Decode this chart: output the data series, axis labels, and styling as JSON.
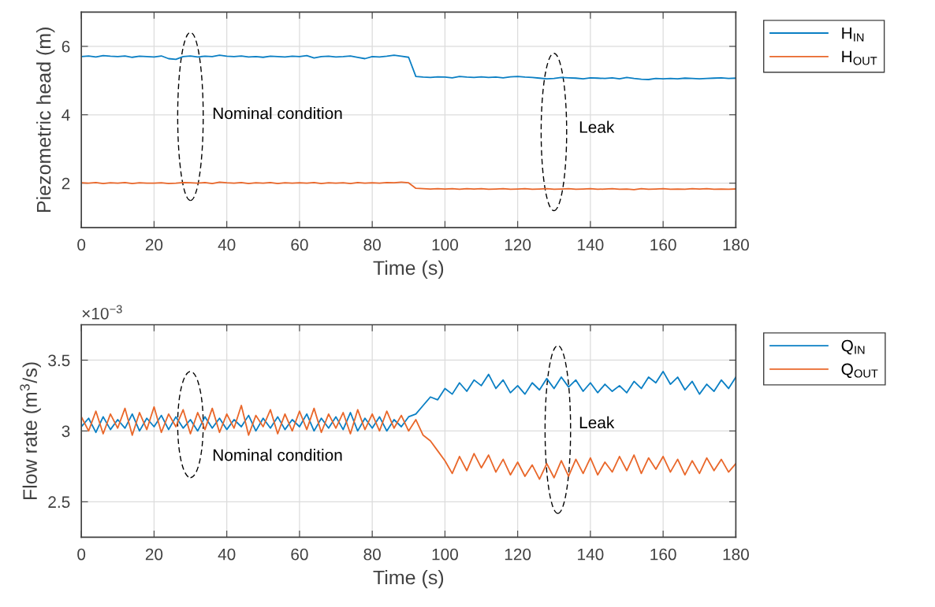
{
  "chart_data": [
    {
      "type": "line",
      "xlabel": "Time (s)",
      "ylabel": "Piezometric head (m)",
      "x": [
        0,
        2,
        4,
        6,
        8,
        10,
        12,
        14,
        16,
        18,
        20,
        22,
        24,
        26,
        28,
        30,
        32,
        34,
        36,
        38,
        40,
        42,
        44,
        46,
        48,
        50,
        52,
        54,
        56,
        58,
        60,
        62,
        64,
        66,
        68,
        70,
        72,
        74,
        76,
        78,
        80,
        82,
        84,
        86,
        88,
        90,
        92,
        94,
        96,
        98,
        100,
        102,
        104,
        106,
        108,
        110,
        112,
        114,
        116,
        118,
        120,
        122,
        124,
        126,
        128,
        130,
        132,
        134,
        136,
        138,
        140,
        142,
        144,
        146,
        148,
        150,
        152,
        154,
        156,
        158,
        160,
        162,
        164,
        166,
        168,
        170,
        172,
        174,
        176,
        178,
        180
      ],
      "series": [
        {
          "name": "H$_{IN}$",
          "color": "#0a7fc4",
          "values": [
            5.7,
            5.72,
            5.69,
            5.73,
            5.71,
            5.7,
            5.72,
            5.68,
            5.71,
            5.7,
            5.69,
            5.72,
            5.64,
            5.62,
            5.7,
            5.72,
            5.69,
            5.71,
            5.7,
            5.74,
            5.71,
            5.7,
            5.72,
            5.69,
            5.7,
            5.68,
            5.71,
            5.7,
            5.69,
            5.71,
            5.7,
            5.73,
            5.66,
            5.7,
            5.71,
            5.69,
            5.7,
            5.72,
            5.68,
            5.64,
            5.7,
            5.69,
            5.71,
            5.74,
            5.71,
            5.68,
            5.12,
            5.1,
            5.09,
            5.11,
            5.1,
            5.08,
            5.12,
            5.1,
            5.09,
            5.11,
            5.09,
            5.1,
            5.08,
            5.11,
            5.12,
            5.1,
            5.09,
            5.07,
            5.05,
            5.06,
            5.09,
            5.08,
            5.07,
            5.05,
            5.08,
            5.07,
            5.06,
            5.08,
            5.05,
            5.09,
            5.06,
            5.04,
            5.03,
            5.06,
            5.05,
            5.06,
            5.05,
            5.07,
            5.06,
            5.05,
            5.06,
            5.07,
            5.08,
            5.06,
            5.07
          ]
        },
        {
          "name": "H$_{OUT}$",
          "color": "#e9672a",
          "values": [
            2.01,
            2.0,
            2.02,
            1.99,
            2.01,
            2.0,
            2.02,
            1.99,
            2.01,
            2.0,
            2.0,
            2.01,
            1.99,
            2.0,
            2.02,
            2.01,
            2.0,
            2.02,
            1.99,
            2.03,
            2.01,
            2.0,
            2.02,
            1.99,
            2.01,
            2.0,
            2.02,
            1.99,
            2.01,
            2.0,
            2.01,
            2.0,
            2.02,
            1.99,
            2.01,
            2.0,
            2.01,
            1.99,
            2.02,
            2.0,
            2.01,
            2.0,
            2.02,
            2.01,
            2.03,
            2.01,
            1.85,
            1.84,
            1.83,
            1.84,
            1.83,
            1.84,
            1.82,
            1.84,
            1.83,
            1.84,
            1.82,
            1.83,
            1.84,
            1.82,
            1.83,
            1.84,
            1.82,
            1.83,
            1.84,
            1.82,
            1.83,
            1.84,
            1.82,
            1.83,
            1.84,
            1.82,
            1.83,
            1.84,
            1.82,
            1.83,
            1.81,
            1.84,
            1.82,
            1.83,
            1.84,
            1.82,
            1.83,
            1.82,
            1.84,
            1.83,
            1.84,
            1.82,
            1.83,
            1.82,
            1.83
          ]
        }
      ],
      "xlim": [
        0,
        180
      ],
      "xticks": [
        0,
        20,
        40,
        60,
        80,
        100,
        120,
        140,
        160,
        180
      ],
      "ylim": [
        0.7,
        7
      ],
      "yticks": [
        2,
        4,
        6
      ],
      "annotations": [
        "Nominal condition",
        "Leak"
      ],
      "grid": true,
      "legend": "top right"
    },
    {
      "type": "line",
      "xlabel": "Time (s)",
      "ylabel": "Flow rate (m$^{3}$/s)",
      "x": [
        0,
        2,
        4,
        6,
        8,
        10,
        12,
        14,
        16,
        18,
        20,
        22,
        24,
        26,
        28,
        30,
        32,
        34,
        36,
        38,
        40,
        42,
        44,
        46,
        48,
        50,
        52,
        54,
        56,
        58,
        60,
        62,
        64,
        66,
        68,
        70,
        72,
        74,
        76,
        78,
        80,
        82,
        84,
        86,
        88,
        90,
        92,
        94,
        96,
        98,
        100,
        102,
        104,
        106,
        108,
        110,
        112,
        114,
        116,
        118,
        120,
        122,
        124,
        126,
        128,
        130,
        132,
        134,
        136,
        138,
        140,
        142,
        144,
        146,
        148,
        150,
        152,
        154,
        156,
        158,
        160,
        162,
        164,
        166,
        168,
        170,
        172,
        174,
        176,
        178,
        180
      ],
      "series": [
        {
          "name": "Q$_{IN}$",
          "color": "#0a7fc4",
          "values": [
            3.03,
            3.09,
            2.99,
            3.1,
            3.01,
            3.08,
            3.02,
            3.12,
            3.0,
            3.09,
            3.03,
            3.11,
            3.01,
            3.1,
            3.02,
            3.08,
            3.0,
            3.1,
            3.02,
            3.09,
            3.01,
            3.08,
            3.03,
            3.11,
            3.0,
            3.09,
            3.02,
            3.1,
            3.01,
            3.08,
            3.03,
            3.12,
            3.0,
            3.09,
            3.02,
            3.1,
            3.01,
            3.13,
            3.0,
            3.09,
            3.02,
            3.1,
            3.0,
            3.08,
            3.03,
            3.1,
            3.12,
            3.18,
            3.24,
            3.22,
            3.3,
            3.26,
            3.34,
            3.28,
            3.36,
            3.32,
            3.4,
            3.3,
            3.36,
            3.27,
            3.32,
            3.26,
            3.34,
            3.29,
            3.37,
            3.3,
            3.38,
            3.31,
            3.36,
            3.28,
            3.34,
            3.27,
            3.33,
            3.28,
            3.32,
            3.27,
            3.35,
            3.3,
            3.38,
            3.34,
            3.42,
            3.33,
            3.38,
            3.29,
            3.35,
            3.26,
            3.33,
            3.28,
            3.36,
            3.3,
            3.38
          ]
        },
        {
          "name": "Q$_{OUT}$",
          "color": "#e9672a",
          "values": [
            3.1,
            3.0,
            3.14,
            2.98,
            3.12,
            3.02,
            3.16,
            2.97,
            3.13,
            3.01,
            3.17,
            2.99,
            3.12,
            3.03,
            3.15,
            2.98,
            3.13,
            3.01,
            3.16,
            2.99,
            3.12,
            3.02,
            3.18,
            2.97,
            3.11,
            3.03,
            3.15,
            2.98,
            3.12,
            3.0,
            3.14,
            3.01,
            3.16,
            2.99,
            3.12,
            3.02,
            3.13,
            2.98,
            3.15,
            3.01,
            3.12,
            3.0,
            3.14,
            3.02,
            3.11,
            3.0,
            3.08,
            2.97,
            2.93,
            2.86,
            2.79,
            2.7,
            2.82,
            2.72,
            2.84,
            2.74,
            2.83,
            2.71,
            2.8,
            2.69,
            2.78,
            2.68,
            2.76,
            2.66,
            2.77,
            2.67,
            2.79,
            2.68,
            2.8,
            2.7,
            2.81,
            2.69,
            2.78,
            2.71,
            2.82,
            2.72,
            2.83,
            2.7,
            2.81,
            2.73,
            2.82,
            2.71,
            2.8,
            2.69,
            2.79,
            2.7,
            2.81,
            2.72,
            2.8,
            2.71,
            2.77
          ]
        }
      ],
      "xlim": [
        0,
        180
      ],
      "xticks": [
        0,
        20,
        40,
        60,
        80,
        100,
        120,
        140,
        160,
        180
      ],
      "ylim": [
        2.25,
        3.75
      ],
      "yticks": [
        2.5,
        3,
        3.5
      ],
      "annotations": [
        "Nominal condition",
        "Leak",
        "×10$^{−3}$"
      ],
      "grid": true,
      "legend": "top right"
    }
  ]
}
